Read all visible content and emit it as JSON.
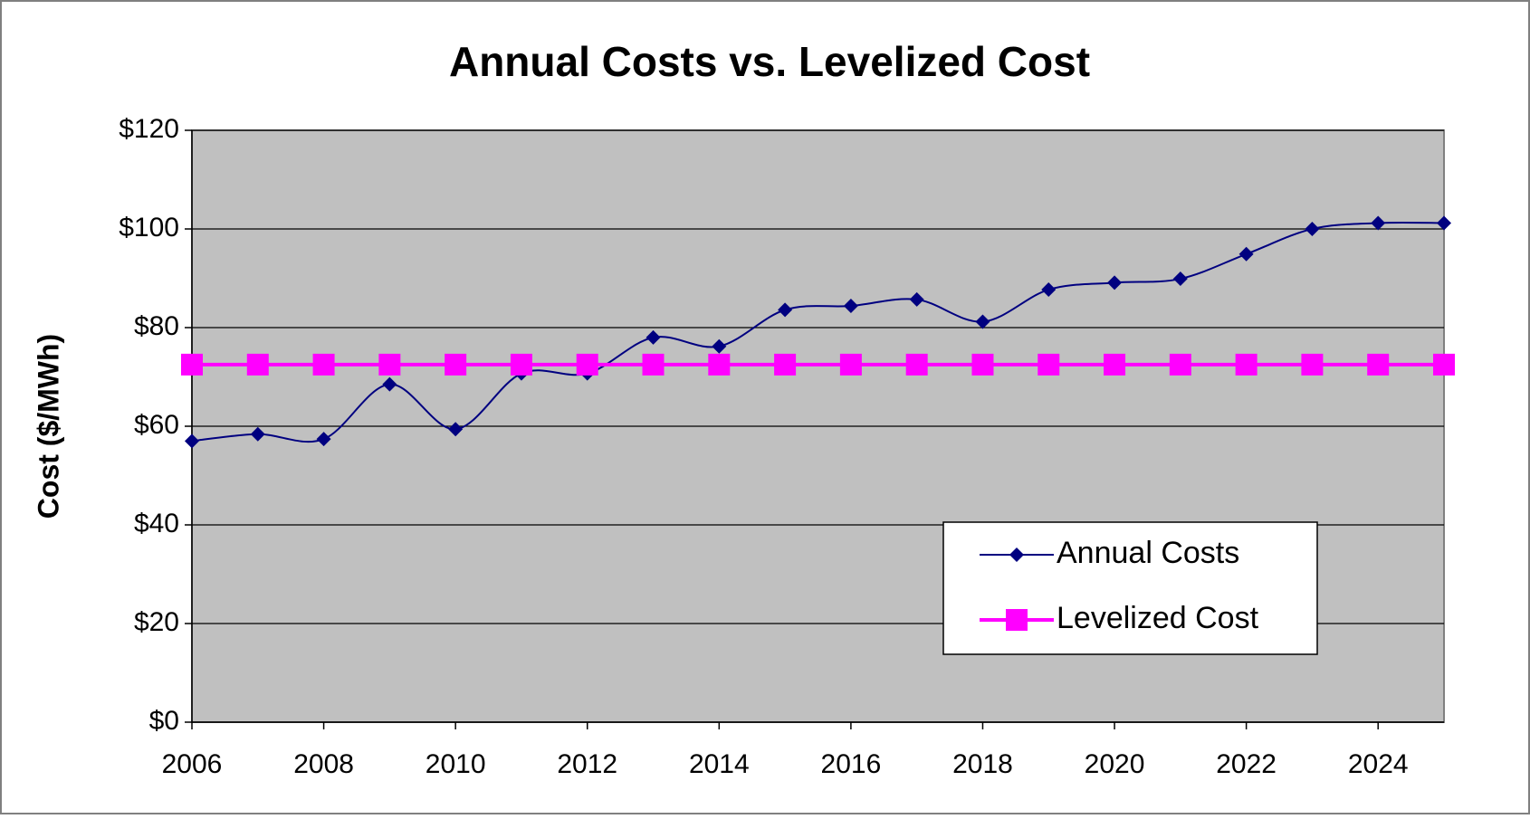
{
  "chart_data": {
    "type": "line",
    "title": "Annual Costs vs. Levelized Cost",
    "y_label": "Cost ($/MWh)",
    "x": [
      2006,
      2007,
      2008,
      2009,
      2010,
      2011,
      2012,
      2013,
      2014,
      2015,
      2016,
      2017,
      2018,
      2019,
      2020,
      2021,
      2022,
      2023,
      2024,
      2025
    ],
    "series": [
      {
        "name": "Annual Costs",
        "color": "#000080",
        "marker": "diamond",
        "smooth": true,
        "values": [
          57.0,
          58.4,
          57.4,
          68.5,
          59.4,
          70.7,
          70.7,
          78.0,
          76.2,
          83.6,
          84.4,
          85.7,
          81.2,
          87.7,
          89.1,
          89.9,
          94.9,
          100.0,
          101.2,
          101.2
        ]
      },
      {
        "name": "Levelized Cost",
        "color": "#ff00ff",
        "marker": "square",
        "smooth": false,
        "values": [
          72.5,
          72.5,
          72.5,
          72.5,
          72.5,
          72.5,
          72.5,
          72.5,
          72.5,
          72.5,
          72.5,
          72.5,
          72.5,
          72.5,
          72.5,
          72.5,
          72.5,
          72.5,
          72.5,
          72.5
        ]
      }
    ],
    "xlim": [
      2006,
      2025
    ],
    "xticks": [
      2006,
      2008,
      2010,
      2012,
      2014,
      2016,
      2018,
      2020,
      2022,
      2024
    ],
    "ylim": [
      0,
      120
    ],
    "yticks": [
      {
        "value": 0,
        "label": "$0"
      },
      {
        "value": 20,
        "label": "$20"
      },
      {
        "value": 40,
        "label": "$40"
      },
      {
        "value": 60,
        "label": "$60"
      },
      {
        "value": 80,
        "label": "$80"
      },
      {
        "value": 100,
        "label": "$100"
      },
      {
        "value": 120,
        "label": "$120"
      }
    ],
    "grid": true,
    "plot_background": "#c0c0c0",
    "legend_position": "lower right"
  }
}
